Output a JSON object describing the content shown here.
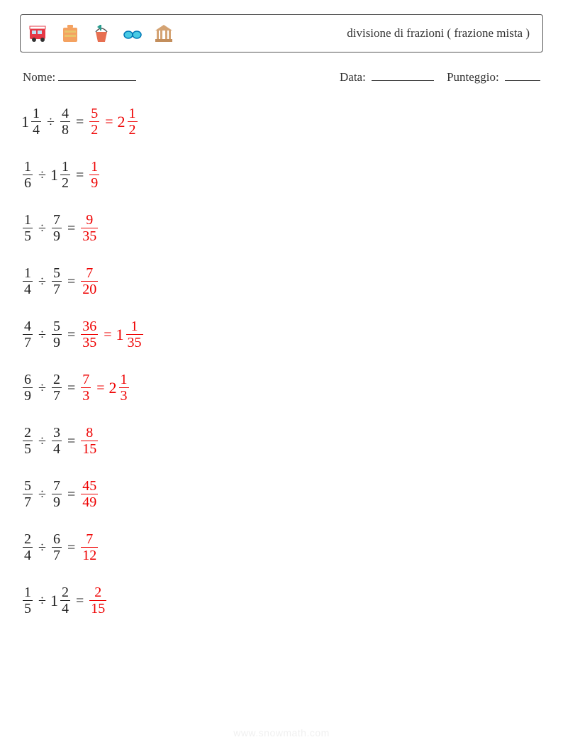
{
  "header": {
    "title": "divisione di frazioni ( frazione mista )",
    "title_color": "#333333",
    "title_fontsize": 17
  },
  "icons": [
    "camper-van",
    "suitcase",
    "sand-bucket",
    "sunglasses",
    "parthenon"
  ],
  "info": {
    "name_label": "Nome:",
    "date_label": "Data:",
    "score_label": "Punteggio:",
    "name_blank_width": 110,
    "date_blank_width": 88,
    "score_blank_width": 50
  },
  "styles": {
    "problem_fontsize": 20,
    "problem_color": "#222222",
    "answer_color": "#ee0000",
    "border_color": "#555555"
  },
  "problems": [
    {
      "left": {
        "whole": "1",
        "num": "1",
        "den": "4"
      },
      "right": {
        "num": "4",
        "den": "8"
      },
      "results": [
        {
          "num": "5",
          "den": "2"
        },
        {
          "whole": "2",
          "num": "1",
          "den": "2"
        }
      ]
    },
    {
      "left": {
        "num": "1",
        "den": "6"
      },
      "right": {
        "whole": "1",
        "num": "1",
        "den": "2"
      },
      "results": [
        {
          "num": "1",
          "den": "9"
        }
      ]
    },
    {
      "left": {
        "num": "1",
        "den": "5"
      },
      "right": {
        "num": "7",
        "den": "9"
      },
      "results": [
        {
          "num": "9",
          "den": "35"
        }
      ]
    },
    {
      "left": {
        "num": "1",
        "den": "4"
      },
      "right": {
        "num": "5",
        "den": "7"
      },
      "results": [
        {
          "num": "7",
          "den": "20"
        }
      ]
    },
    {
      "left": {
        "num": "4",
        "den": "7"
      },
      "right": {
        "num": "5",
        "den": "9"
      },
      "results": [
        {
          "num": "36",
          "den": "35"
        },
        {
          "whole": "1",
          "num": "1",
          "den": "35"
        }
      ]
    },
    {
      "left": {
        "num": "6",
        "den": "9"
      },
      "right": {
        "num": "2",
        "den": "7"
      },
      "results": [
        {
          "num": "7",
          "den": "3"
        },
        {
          "whole": "2",
          "num": "1",
          "den": "3"
        }
      ]
    },
    {
      "left": {
        "num": "2",
        "den": "5"
      },
      "right": {
        "num": "3",
        "den": "4"
      },
      "results": [
        {
          "num": "8",
          "den": "15"
        }
      ]
    },
    {
      "left": {
        "num": "5",
        "den": "7"
      },
      "right": {
        "num": "7",
        "den": "9"
      },
      "results": [
        {
          "num": "45",
          "den": "49"
        }
      ]
    },
    {
      "left": {
        "num": "2",
        "den": "4"
      },
      "right": {
        "num": "6",
        "den": "7"
      },
      "results": [
        {
          "num": "7",
          "den": "12"
        }
      ]
    },
    {
      "left": {
        "num": "1",
        "den": "5"
      },
      "right": {
        "whole": "1",
        "num": "2",
        "den": "4"
      },
      "results": [
        {
          "num": "2",
          "den": "15"
        }
      ]
    }
  ],
  "operators": {
    "division": "÷",
    "equals": "="
  },
  "footer": "www.snowmath.com"
}
